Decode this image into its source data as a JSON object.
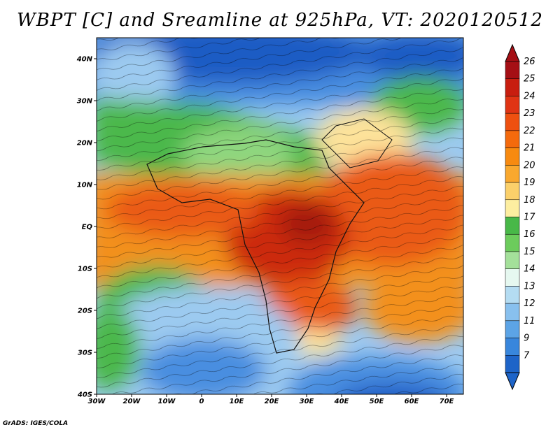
{
  "title": "WBPT [C] and Sreamline at 925hPa, VT: 2020120512",
  "credit": "GrADS: IGES/COLA",
  "axes": {
    "lat_labels": [
      "40N",
      "30N",
      "20N",
      "10N",
      "EQ",
      "10S",
      "20S",
      "30S",
      "40S"
    ],
    "lon_labels": [
      "30W",
      "20W",
      "10W",
      "0",
      "10E",
      "20E",
      "30E",
      "40E",
      "50E",
      "60E",
      "70E"
    ]
  },
  "colorbar": {
    "labels": [
      "26",
      "25",
      "24",
      "23",
      "22",
      "21",
      "20",
      "19",
      "18",
      "17",
      "16",
      "15",
      "14",
      "13",
      "12",
      "11",
      "9",
      "7"
    ],
    "colors": [
      "#a50f15",
      "#c81e0f",
      "#e03414",
      "#ee5010",
      "#f46a0d",
      "#f78a10",
      "#f9a82e",
      "#fbd06a",
      "#fdeea0",
      "#48b848",
      "#6ccc5c",
      "#a4e09a",
      "#e6f8f0",
      "#b4dcf2",
      "#88c0ee",
      "#5ca4e6",
      "#3886dc",
      "#1e64c8"
    ]
  },
  "field_colors": {
    "cold_deep": "#1e5cc4",
    "cold": "#4a8ee0",
    "cold_light": "#9ccaf0",
    "green": "#4cb84c",
    "green_light": "#8ed67e",
    "yellow": "#fde29a",
    "orange": "#f3901c",
    "orange_red": "#ea5a14",
    "red": "#cc2a10",
    "red_dark": "#a51a0e"
  }
}
